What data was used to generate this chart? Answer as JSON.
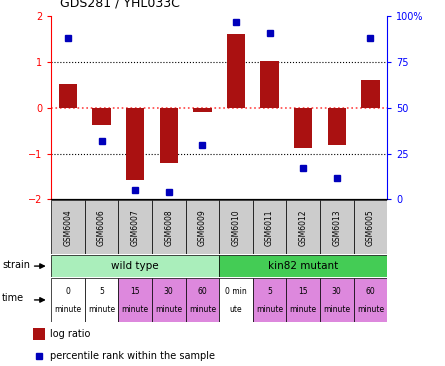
{
  "title": "GDS281 / YHL033C",
  "samples": [
    "GSM6004",
    "GSM6006",
    "GSM6007",
    "GSM6008",
    "GSM6009",
    "GSM6010",
    "GSM6011",
    "GSM6012",
    "GSM6013",
    "GSM6005"
  ],
  "log_ratio": [
    0.52,
    -0.38,
    -1.58,
    -1.2,
    -0.08,
    1.62,
    1.02,
    -0.88,
    -0.82,
    0.62
  ],
  "percentile_pct": [
    88,
    32,
    5,
    4,
    30,
    97,
    91,
    17,
    12,
    88
  ],
  "ylim": [
    -2,
    2
  ],
  "y2lim": [
    0,
    100
  ],
  "yticks": [
    -2,
    -1,
    0,
    1,
    2
  ],
  "y2ticks": [
    0,
    25,
    50,
    75,
    100
  ],
  "bar_color": "#aa1111",
  "dot_color": "#0000bb",
  "bar_width": 0.55,
  "wild_type_color": "#aaeebb",
  "kin82_color": "#44cc55",
  "time_colors_wt": [
    "#ffffff",
    "#ffffff",
    "#dd88dd",
    "#dd88dd",
    "#dd88dd"
  ],
  "time_colors_km": [
    "#ffffff",
    "#dd88dd",
    "#dd88dd",
    "#dd88dd",
    "#dd88dd"
  ],
  "time_labels_wt": [
    [
      "0",
      "minute"
    ],
    [
      "5",
      "minute"
    ],
    [
      "15",
      "minute"
    ],
    [
      "30",
      "minute"
    ],
    [
      "60",
      "minute"
    ]
  ],
  "time_labels_km": [
    [
      "0 min",
      "ute"
    ],
    [
      "5",
      "minute"
    ],
    [
      "15",
      "minute"
    ],
    [
      "30",
      "minute"
    ],
    [
      "60",
      "minute"
    ]
  ],
  "hline_color": "#ff4444",
  "dot_color_line": "#0000bb",
  "bg_color": "#ffffff"
}
